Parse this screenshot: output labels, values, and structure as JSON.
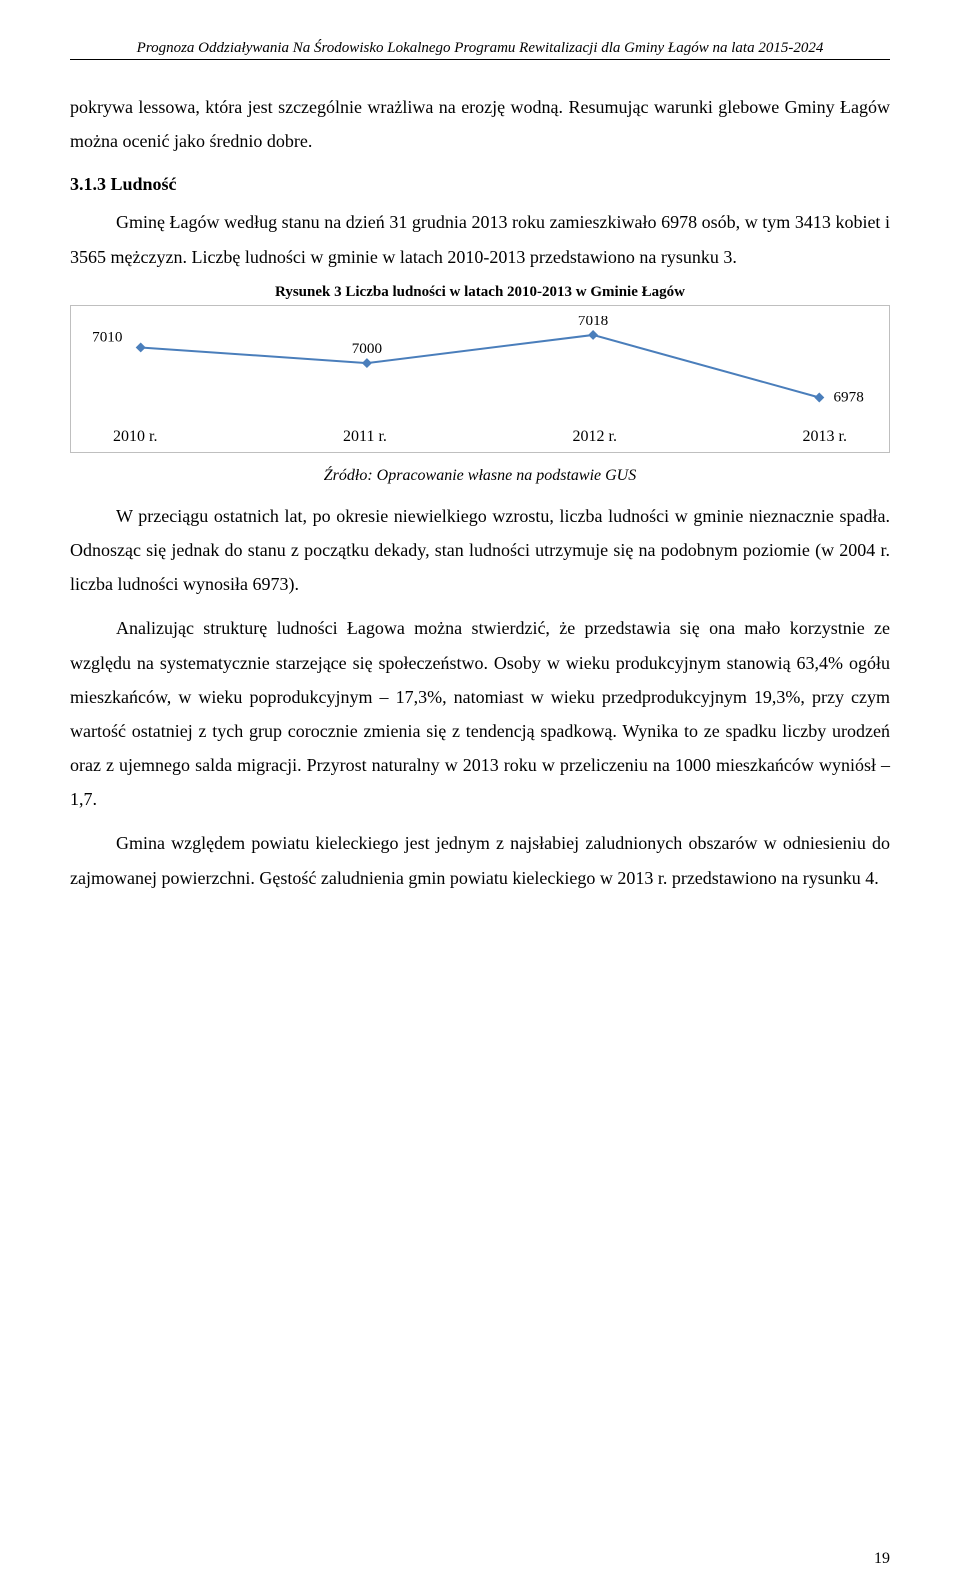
{
  "header": {
    "title_line": "Prognoza Oddziaływania Na Środowisko Lokalnego Programu Rewitalizacji dla Gminy Łagów na lata 2015-2024"
  },
  "p1": "pokrywa lessowa, która jest szczególnie wrażliwa na erozję wodną. Resumując warunki glebowe Gminy Łagów można ocenić jako średnio dobre.",
  "section": {
    "number": "3.1.3",
    "title": "Ludność"
  },
  "p2": "Gminę Łagów według stanu na dzień 31 grudnia 2013 roku zamieszkiwało 6978 osób, w tym 3413 kobiet i 3565 mężczyzn. Liczbę ludności w gminie w latach 2010-2013 przedstawiono na rysunku 3.",
  "chart": {
    "type": "line",
    "title": "Rysunek 3 Liczba ludności w latach 2010-2013 w Gminie Łagów",
    "categories": [
      "2010 r.",
      "2011 r.",
      "2012 r.",
      "2013 r."
    ],
    "values": [
      7010,
      7000,
      7018,
      6978
    ],
    "ylim": [
      6970,
      7025
    ],
    "line_color": "#4a7ebb",
    "marker_color": "#4a7ebb",
    "marker_size": 7,
    "line_width": 2,
    "border_color": "#bfbfbf",
    "label_color": "#000000",
    "label_fontsize": 15,
    "background_color": "#ffffff"
  },
  "source": "Źródło: Opracowanie własne na podstawie GUS",
  "p3": "W przeciągu ostatnich lat, po okresie niewielkiego wzrostu, liczba ludności w gminie nieznacznie spadła. Odnosząc się jednak do stanu z początku dekady, stan ludności utrzymuje się na podobnym poziomie (w 2004 r. liczba ludności wynosiła 6973).",
  "p4": "Analizując strukturę ludności Łagowa można stwierdzić, że przedstawia się ona mało korzystnie ze względu na systematycznie starzejące się społeczeństwo. Osoby w wieku produkcyjnym stanowią 63,4% ogółu mieszkańców, w wieku poprodukcyjnym – 17,3%, natomiast w wieku przedprodukcyjnym 19,3%, przy czym wartość ostatniej z tych grup corocznie zmienia się z tendencją spadkową. Wynika to ze spadku liczby urodzeń oraz z ujemnego salda migracji. Przyrost naturalny w 2013 roku w przeliczeniu na 1000 mieszkańców wyniósł – 1,7.",
  "p5": "Gmina względem powiatu kieleckiego jest jednym z najsłabiej zaludnionych obszarów w odniesieniu do zajmowanej powierzchni. Gęstość zaludnienia gmin powiatu kieleckiego w 2013 r. przedstawiono na rysunku 4.",
  "page_number": "19"
}
